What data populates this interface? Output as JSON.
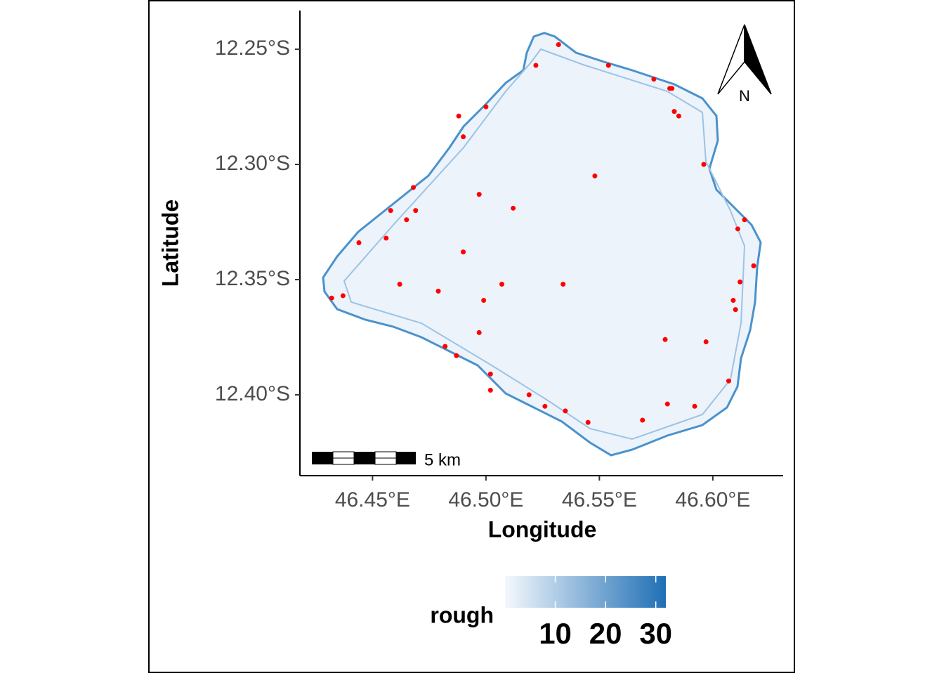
{
  "chart_data": {
    "type": "scatter",
    "x_label": "Longitude",
    "y_label": "Latitude",
    "xlim": [
      46.418,
      46.631
    ],
    "ylim": [
      -12.4351,
      -12.2332
    ],
    "xticks": [
      {
        "value": 46.45,
        "label": "46.45°E"
      },
      {
        "value": 46.5,
        "label": "46.50°E"
      },
      {
        "value": 46.55,
        "label": "46.55°E"
      },
      {
        "value": 46.6,
        "label": "46.60°E"
      }
    ],
    "yticks": [
      {
        "value": -12.25,
        "label": "12.25°S"
      },
      {
        "value": -12.3,
        "label": "12.30°S"
      },
      {
        "value": -12.35,
        "label": "12.35°S"
      },
      {
        "value": -12.4,
        "label": "12.40°S"
      }
    ],
    "color": "#ff0000",
    "x": [
      46.532,
      46.522,
      46.554,
      46.574,
      46.581,
      46.582,
      46.488,
      46.5,
      46.583,
      46.585,
      46.49,
      46.596,
      46.548,
      46.468,
      46.497,
      46.458,
      46.469,
      46.512,
      46.465,
      46.614,
      46.611,
      46.456,
      46.444,
      46.49,
      46.618,
      46.612,
      46.462,
      46.479,
      46.507,
      46.534,
      46.437,
      46.432,
      46.499,
      46.609,
      46.61,
      46.497,
      46.579,
      46.597,
      46.482,
      46.487,
      46.502,
      46.607,
      46.502,
      46.519,
      46.58,
      46.592,
      46.526,
      46.535,
      46.545,
      46.569
    ],
    "values": [
      -12.248,
      -12.257,
      -12.257,
      -12.263,
      -12.267,
      -12.267,
      -12.279,
      -12.275,
      -12.277,
      -12.279,
      -12.288,
      -12.3,
      -12.305,
      -12.31,
      -12.313,
      -12.32,
      -12.32,
      -12.319,
      -12.324,
      -12.324,
      -12.328,
      -12.332,
      -12.334,
      -12.338,
      -12.344,
      -12.351,
      -12.352,
      -12.355,
      -12.352,
      -12.352,
      -12.357,
      -12.358,
      -12.359,
      -12.359,
      -12.363,
      -12.373,
      -12.376,
      -12.377,
      -12.379,
      -12.383,
      -12.391,
      -12.394,
      -12.398,
      -12.4,
      -12.404,
      -12.405,
      -12.405,
      -12.407,
      -12.412,
      -12.411
    ],
    "colorbar": {
      "title": "rough",
      "lim": [
        0,
        32
      ],
      "ticks": [
        10,
        20,
        30
      ],
      "colors": [
        "#f4f8fd",
        "#1f6fb5"
      ]
    },
    "scale_bar": "5 km",
    "north_label": "N"
  }
}
